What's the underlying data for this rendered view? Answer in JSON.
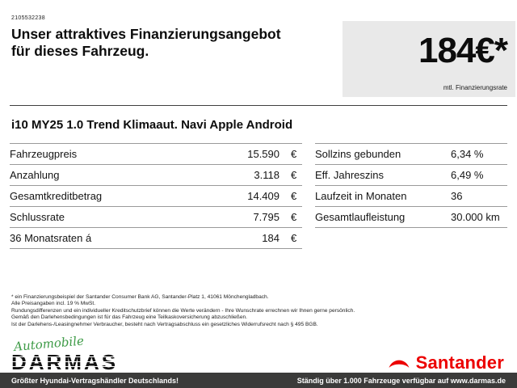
{
  "header": {
    "doc_id": "2105532238",
    "headline_line1": "Unser attraktives Finanzierungsangebot",
    "headline_line2": "für dieses Fahrzeug.",
    "rate_value": "184€*",
    "rate_caption": "mtl. Finanzierungsrate"
  },
  "vehicle": {
    "title": "i10 MY25 1.0 Trend Klimaaut. Navi Apple Android"
  },
  "table": {
    "left": [
      {
        "label": "Fahrzeugpreis",
        "value": "15.590",
        "unit": "€"
      },
      {
        "label": "Anzahlung",
        "value": "3.118",
        "unit": "€"
      },
      {
        "label": "Gesamtkreditbetrag",
        "value": "14.409",
        "unit": "€"
      },
      {
        "label": "Schlussrate",
        "value": "7.795",
        "unit": "€"
      },
      {
        "label": "36 Monatsraten á",
        "value": "184",
        "unit": "€"
      }
    ],
    "right": [
      {
        "label": "Sollzins gebunden",
        "value": "6,34 %"
      },
      {
        "label": "Eff. Jahreszins",
        "value": "6,49 %"
      },
      {
        "label": "Laufzeit in Monaten",
        "value": "36"
      },
      {
        "label": "Gesamtlaufleistung",
        "value": "30.000 km"
      }
    ]
  },
  "fine_print": [
    "* ein Finanzierungsbeispiel der Santander Consumer Bank AG, Santander-Platz 1, 41061 Mönchengladbach.",
    "Alle Preisangaben incl. 19 % MwSt.",
    "Rundungsdifferenzen und ein individueller Kreditschutzbrief können die Werte verändern - Ihre Wunschrate errechnen wir Ihnen gerne persönlich.",
    "Gemäß den Darlehensbedingungen ist für das Fahrzeug eine Teilkaskoversicherung abzuschließen.",
    "Ist der Darlehens-/Leasingnehmer Verbraucher, besteht nach Vertragsabschluss ein gesetzliches Widerrufsrecht nach § 495 BGB."
  ],
  "branding": {
    "darmas_script": "Automobile",
    "darmas_name": "DARMAS",
    "santander_name": "Santander"
  },
  "footer": {
    "left": "Größter Hyundai-Vertragshändler Deutschlands!",
    "right": "Ständig über 1.000 Fahrzeuge verfügbar auf www.darmas.de"
  },
  "colors": {
    "santander_red": "#ec0000",
    "darmas_green": "#3e9b47",
    "rate_box_bg": "#e9e9e9",
    "footer_bg": "#3b3b3a"
  }
}
